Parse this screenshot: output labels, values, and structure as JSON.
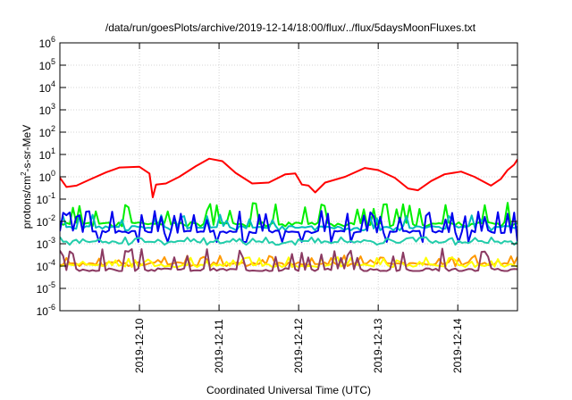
{
  "chart_data": {
    "type": "line",
    "title": "/data/run/goesPlots/archive/2019-12-14/18:00/flux/../flux/5daysMoonFluxes.txt",
    "xlabel": "Coordinated Universal Time (UTC)",
    "ylabel": {
      "base": "protons/cm",
      "sup": "2",
      "rest": "-s-sr-MeV"
    },
    "x_range": [
      "2019-12-09 00:00",
      "2019-12-14 18:00"
    ],
    "y_scale": "log",
    "ylim": [
      1e-06,
      1000000.0
    ],
    "y_ticks": [
      {
        "value": -6,
        "base": "10",
        "exp": "-6"
      },
      {
        "value": -5,
        "base": "10",
        "exp": "-5"
      },
      {
        "value": -4,
        "base": "10",
        "exp": "-4"
      },
      {
        "value": -3,
        "base": "10",
        "exp": "-3"
      },
      {
        "value": -2,
        "base": "10",
        "exp": "-2"
      },
      {
        "value": -1,
        "base": "10",
        "exp": "-1"
      },
      {
        "value": 0,
        "base": "10",
        "exp": "0"
      },
      {
        "value": 1,
        "base": "10",
        "exp": "1"
      },
      {
        "value": 2,
        "base": "10",
        "exp": "2"
      },
      {
        "value": 3,
        "base": "10",
        "exp": "3"
      },
      {
        "value": 4,
        "base": "10",
        "exp": "4"
      },
      {
        "value": 5,
        "base": "10",
        "exp": "5"
      },
      {
        "value": 6,
        "base": "10",
        "exp": "6"
      }
    ],
    "x_ticks": [
      {
        "label": "2019-12-10",
        "value": "2019-12-10 00:00"
      },
      {
        "label": "2019-12-11",
        "value": "2019-12-11 00:00"
      },
      {
        "label": "2019-12-12",
        "value": "2019-12-12 00:00"
      },
      {
        "label": "2019-12-13",
        "value": "2019-12-13 00:00"
      },
      {
        "label": "2019-12-14",
        "value": "2019-12-14 00:00"
      }
    ],
    "grid": true,
    "series": [
      {
        "color": "#ff0000",
        "style": "smooth",
        "points": [
          [
            "2019-12-09 00:00",
            0.9
          ],
          [
            "2019-12-09 02:00",
            0.35
          ],
          [
            "2019-12-09 05:00",
            0.4
          ],
          [
            "2019-12-09 09:00",
            0.75
          ],
          [
            "2019-12-09 14:00",
            1.6
          ],
          [
            "2019-12-09 18:00",
            2.6
          ],
          [
            "2019-12-10 00:00",
            2.8
          ],
          [
            "2019-12-10 03:00",
            1.4
          ],
          [
            "2019-12-10 04:00",
            0.12
          ],
          [
            "2019-12-10 05:00",
            0.45
          ],
          [
            "2019-12-10 08:00",
            0.5
          ],
          [
            "2019-12-10 12:00",
            1.0
          ],
          [
            "2019-12-10 17:00",
            3.0
          ],
          [
            "2019-12-10 21:00",
            6.5
          ],
          [
            "2019-12-11 01:00",
            5.0
          ],
          [
            "2019-12-11 05:00",
            1.5
          ],
          [
            "2019-12-11 10:00",
            0.5
          ],
          [
            "2019-12-11 15:00",
            0.55
          ],
          [
            "2019-12-11 20:00",
            1.3
          ],
          [
            "2019-12-11 23:00",
            1.4
          ],
          [
            "2019-12-12 01:00",
            0.45
          ],
          [
            "2019-12-12 03:00",
            0.4
          ],
          [
            "2019-12-12 05:00",
            0.2
          ],
          [
            "2019-12-12 08:00",
            0.55
          ],
          [
            "2019-12-12 14:00",
            1.0
          ],
          [
            "2019-12-12 20:00",
            2.5
          ],
          [
            "2019-12-13 00:00",
            2.0
          ],
          [
            "2019-12-13 05:00",
            0.9
          ],
          [
            "2019-12-13 09:00",
            0.3
          ],
          [
            "2019-12-13 12:00",
            0.25
          ],
          [
            "2019-12-13 16:00",
            0.65
          ],
          [
            "2019-12-13 20:00",
            1.3
          ],
          [
            "2019-12-14 01:00",
            1.7
          ],
          [
            "2019-12-14 05:00",
            1.0
          ],
          [
            "2019-12-14 10:00",
            0.4
          ],
          [
            "2019-12-14 13:00",
            0.8
          ],
          [
            "2019-12-14 15:00",
            2.0
          ],
          [
            "2019-12-14 17:00",
            3.5
          ],
          [
            "2019-12-14 18:00",
            6.0
          ]
        ]
      },
      {
        "color": "#00ee00",
        "style": "spiky",
        "base": 0.008,
        "low": 0.006,
        "high": 0.07,
        "seed": 11
      },
      {
        "color": "#00bbbb",
        "style": "spiky",
        "base": 0.0055,
        "low": 0.004,
        "high": 0.02,
        "seed": 23
      },
      {
        "color": "#0000ee",
        "style": "spiky",
        "base": 0.0035,
        "low": 0.0012,
        "high": 0.03,
        "seed": 37
      },
      {
        "color": "#22ccaa",
        "style": "spiky",
        "base": 0.0012,
        "low": 0.0009,
        "high": 0.002,
        "seed": 41
      },
      {
        "color": "#ff9900",
        "style": "spiky",
        "base": 0.00013,
        "low": 0.0001,
        "high": 0.0003,
        "seed": 53
      },
      {
        "color": "#ffff00",
        "style": "spiky",
        "base": 0.00011,
        "low": 9e-05,
        "high": 0.00025,
        "seed": 59
      },
      {
        "color": "#8b3a62",
        "style": "spiky",
        "base": 7e-05,
        "low": 6e-05,
        "high": 0.0006,
        "seed": 67
      }
    ]
  }
}
